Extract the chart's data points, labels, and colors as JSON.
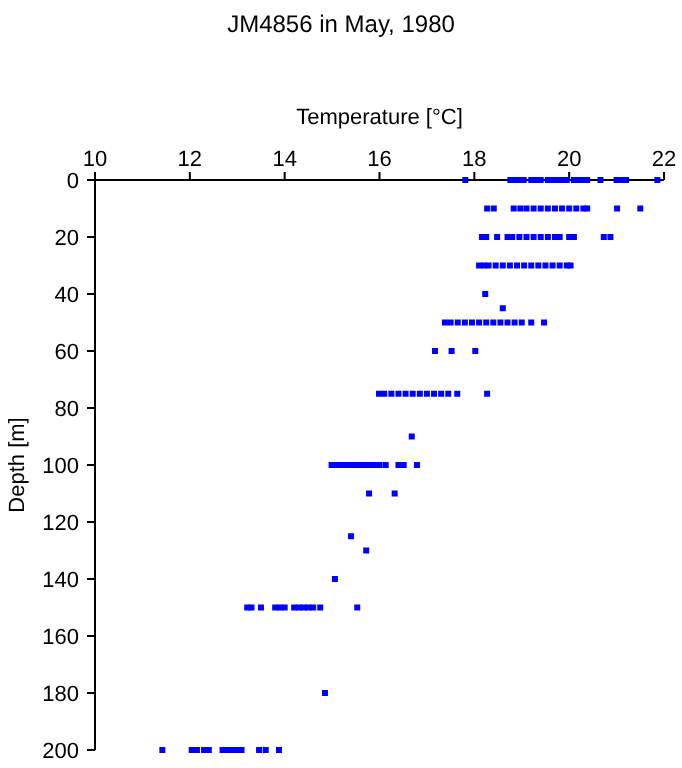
{
  "chart_data": {
    "type": "scatter",
    "title": "JM4856 in May, 1980",
    "xlabel": "Temperature [°C]",
    "ylabel": "Depth [m]",
    "xlim": [
      10,
      22
    ],
    "xticks": [
      10,
      12,
      14,
      16,
      18,
      20,
      22
    ],
    "ylim": [
      200,
      0
    ],
    "yticks": [
      0,
      20,
      40,
      60,
      80,
      100,
      120,
      140,
      160,
      180,
      200
    ],
    "marker": "square",
    "grid": false,
    "series": [
      {
        "color": "#0000ff",
        "x": [
          17.81,
          18.76,
          18.85,
          18.95,
          19.04,
          19.2,
          19.3,
          19.4,
          19.55,
          19.65,
          19.75,
          19.85,
          19.95,
          20.1,
          20.2,
          20.3,
          20.38,
          20.66,
          21.0,
          21.1,
          21.2,
          21.86,
          18.27,
          18.41,
          18.83,
          18.97,
          19.1,
          19.25,
          19.4,
          19.55,
          19.7,
          19.85,
          20.0,
          20.15,
          20.3,
          20.38,
          21.01,
          21.5,
          18.16,
          18.25,
          18.48,
          18.7,
          18.8,
          18.95,
          19.1,
          19.25,
          19.4,
          19.55,
          19.7,
          19.8,
          20.0,
          20.1,
          20.73,
          20.87,
          18.1,
          18.2,
          18.3,
          18.45,
          18.6,
          18.75,
          18.9,
          19.05,
          19.2,
          19.35,
          19.5,
          19.65,
          19.8,
          19.95,
          20.03,
          18.23,
          18.6,
          17.38,
          17.5,
          17.65,
          17.8,
          17.95,
          18.1,
          18.25,
          18.4,
          18.55,
          18.7,
          18.85,
          19.0,
          19.2,
          19.47,
          17.17,
          17.52,
          18.02,
          15.99,
          16.1,
          16.25,
          16.4,
          16.55,
          16.7,
          16.85,
          17.0,
          17.15,
          17.3,
          17.45,
          17.64,
          18.27,
          16.68,
          14.99,
          15.1,
          15.2,
          15.3,
          15.4,
          15.5,
          15.6,
          15.7,
          15.8,
          15.9,
          16.0,
          16.13,
          16.4,
          16.51,
          16.79,
          15.78,
          16.32,
          15.4,
          15.72,
          15.06,
          13.21,
          13.3,
          13.5,
          13.8,
          13.9,
          14.0,
          14.2,
          14.3,
          14.4,
          14.5,
          14.6,
          14.75,
          15.53,
          14.85,
          11.42,
          12.04,
          12.15,
          12.3,
          12.4,
          12.69,
          12.8,
          12.9,
          13.0,
          13.09,
          13.46,
          13.6,
          13.88
        ],
        "values": [
          0,
          0,
          0,
          0,
          0,
          0,
          0,
          0,
          0,
          0,
          0,
          0,
          0,
          0,
          0,
          0,
          0,
          0,
          0,
          0,
          0,
          0,
          10,
          10,
          10,
          10,
          10,
          10,
          10,
          10,
          10,
          10,
          10,
          10,
          10,
          10,
          10,
          10,
          20,
          20,
          20,
          20,
          20,
          20,
          20,
          20,
          20,
          20,
          20,
          20,
          20,
          20,
          20,
          20,
          30,
          30,
          30,
          30,
          30,
          30,
          30,
          30,
          30,
          30,
          30,
          30,
          30,
          30,
          30,
          40,
          45,
          50,
          50,
          50,
          50,
          50,
          50,
          50,
          50,
          50,
          50,
          50,
          50,
          50,
          50,
          60,
          60,
          60,
          75,
          75,
          75,
          75,
          75,
          75,
          75,
          75,
          75,
          75,
          75,
          75,
          75,
          90,
          100,
          100,
          100,
          100,
          100,
          100,
          100,
          100,
          100,
          100,
          100,
          100,
          100,
          100,
          100,
          110,
          110,
          125,
          130,
          140,
          150,
          150,
          150,
          150,
          150,
          150,
          150,
          150,
          150,
          150,
          150,
          150,
          150,
          180,
          200,
          200,
          200,
          200,
          200,
          200,
          200,
          200,
          200,
          200,
          200,
          200,
          200
        ]
      }
    ]
  }
}
